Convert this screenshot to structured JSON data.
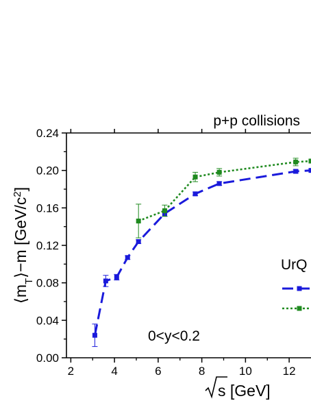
{
  "chart_data": {
    "type": "line",
    "title": "p+p collisions",
    "annotation": "0<y<0.2",
    "xlabel": "√s [GeV]",
    "ylabel": "⟨m_T⟩−m [GeV/c²]",
    "xlim": [
      1.8,
      13.0
    ],
    "ylim": [
      0.0,
      0.24
    ],
    "xticks": [
      2,
      4,
      6,
      8,
      10,
      12
    ],
    "yticks": [
      0.0,
      0.04,
      0.08,
      0.12,
      0.16,
      0.2,
      0.24
    ],
    "xtick_labels": [
      "2",
      "4",
      "6",
      "8",
      "10",
      "12"
    ],
    "ytick_labels": [
      "0.00",
      "0.04",
      "0.08",
      "0.12",
      "0.16",
      "0.20",
      "0.24"
    ],
    "legend_title": "UrQ",
    "grid": false,
    "series": [
      {
        "color": "#1a1adb",
        "line_style": "dashed",
        "marker": "square",
        "x": [
          3.1,
          3.6,
          4.1,
          4.6,
          5.1,
          6.3,
          7.7,
          8.8,
          12.3,
          13.0
        ],
        "y": [
          0.024,
          0.082,
          0.086,
          0.107,
          0.124,
          0.154,
          0.175,
          0.186,
          0.199,
          0.2
        ],
        "err": [
          0.012,
          0.006,
          0.003,
          0.002,
          0.002,
          0.003,
          0.002,
          0.002,
          0.002,
          0.0
        ]
      },
      {
        "color": "#1f8a1f",
        "line_style": "dotted",
        "marker": "square",
        "x": [
          5.1,
          6.3,
          7.7,
          8.8,
          12.3,
          13.0
        ],
        "y": [
          0.146,
          0.157,
          0.193,
          0.198,
          0.209,
          0.21
        ],
        "err": [
          0.018,
          0.006,
          0.005,
          0.004,
          0.004,
          0.0
        ]
      }
    ]
  }
}
